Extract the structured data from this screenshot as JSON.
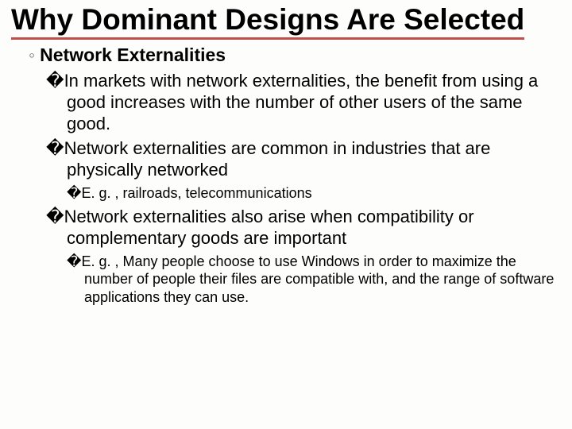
{
  "title": "Why Dominant Designs Are Selected",
  "sub": {
    "marker": "◦",
    "label": "Network Externalities"
  },
  "bullets": {
    "b1": "In markets with network externalities, the benefit from using a good increases with the number of other users of the same good.",
    "b2": "Network externalities are common in industries that are physically networked",
    "b2a": "E. g. , railroads, telecommunications",
    "b3": "Network externalities also arise when compatibility or complementary goods are important",
    "b3a": "E. g. , Many people choose to use Windows in order to maximize the number of people their files are compatible with, and the range of software applications they can use."
  },
  "square": "�"
}
